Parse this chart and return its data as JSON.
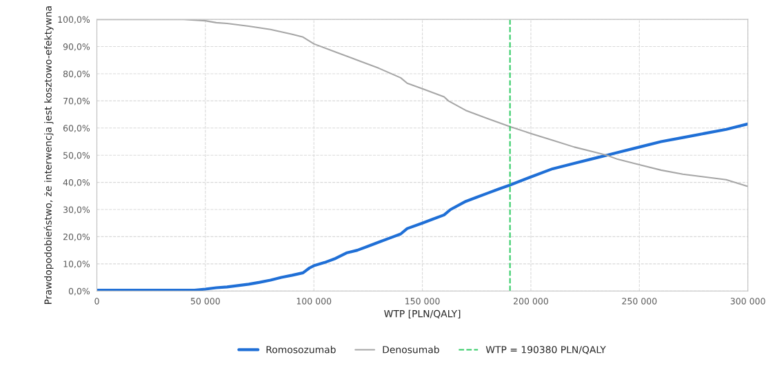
{
  "chart_data": {
    "type": "line",
    "xlabel": "WTP [PLN/QALY]",
    "ylabel": "Prawdopodobieństwo, że interwencja jest kosztowo-efektywna",
    "xlim": [
      0,
      300000
    ],
    "xticks": [
      0,
      {
        "value": 50000,
        "label": "50 000"
      },
      {
        "value": 100000,
        "label": "100 000"
      },
      {
        "value": 150000,
        "label": "150 000"
      },
      {
        "value": 200000,
        "label": "200 000"
      },
      {
        "value": 250000,
        "label": "250 000"
      },
      {
        "value": 300000,
        "label": "300 000"
      }
    ],
    "ylim": [
      0,
      100
    ],
    "yticks": [
      {
        "value": 0,
        "label": "0,0%"
      },
      {
        "value": 10,
        "label": "10,0%"
      },
      {
        "value": 20,
        "label": "20,0%"
      },
      {
        "value": 30,
        "label": "30,0%"
      },
      {
        "value": 40,
        "label": "40,0%"
      },
      {
        "value": 50,
        "label": "50,0%"
      },
      {
        "value": 60,
        "label": "60,0%"
      },
      {
        "value": 70,
        "label": "70,0%"
      },
      {
        "value": 80,
        "label": "80,0%"
      },
      {
        "value": 90,
        "label": "90,0%"
      },
      {
        "value": 100,
        "label": "100,0%"
      }
    ],
    "grid": true,
    "legend": "bottom",
    "series": [
      {
        "name": "Romosozumab",
        "color": "#1f6fd6",
        "x": [
          0,
          45000,
          50000,
          55000,
          60000,
          65000,
          70000,
          75000,
          80000,
          85000,
          90000,
          95000,
          98000,
          100000,
          105000,
          110000,
          115000,
          120000,
          125000,
          130000,
          135000,
          140000,
          143000,
          150000,
          155000,
          160000,
          163000,
          170000,
          175000,
          180000,
          185000,
          190380,
          200000,
          210000,
          220000,
          230000,
          235000,
          240000,
          250000,
          260000,
          270000,
          280000,
          290000,
          300000
        ],
        "values": [
          0.3,
          0.3,
          0.7,
          1.2,
          1.5,
          2.0,
          2.5,
          3.2,
          4.0,
          5.0,
          5.8,
          6.7,
          8.5,
          9.3,
          10.5,
          12.0,
          14.0,
          15.0,
          16.5,
          18.0,
          19.5,
          21.0,
          23.0,
          25.0,
          26.5,
          28.0,
          30.0,
          33.0,
          34.5,
          36.0,
          37.5,
          39.0,
          42.0,
          45.0,
          47.0,
          49.0,
          50.0,
          51.0,
          53.0,
          55.0,
          56.5,
          58.0,
          59.5,
          61.5
        ]
      },
      {
        "name": "Denosumab",
        "color": "#a6a6a6",
        "x": [
          0,
          40000,
          50000,
          55000,
          60000,
          70000,
          80000,
          90000,
          95000,
          100000,
          110000,
          120000,
          130000,
          140000,
          143000,
          150000,
          160000,
          162000,
          170000,
          180000,
          190380,
          200000,
          210000,
          220000,
          230000,
          235000,
          240000,
          250000,
          260000,
          270000,
          280000,
          290000,
          300000
        ],
        "values": [
          100,
          100,
          99.5,
          98.8,
          98.5,
          97.5,
          96.3,
          94.5,
          93.5,
          91.0,
          88.0,
          85.0,
          82.0,
          78.5,
          76.5,
          74.5,
          71.5,
          70.0,
          66.5,
          63.5,
          60.5,
          58.0,
          55.5,
          53.0,
          51.0,
          50.0,
          48.5,
          46.5,
          44.5,
          43.0,
          42.0,
          41.0,
          38.5
        ]
      }
    ],
    "ref_lines": [
      {
        "axis": "x",
        "value": 190380,
        "label": "WTP = 190380 PLN/QALY",
        "color": "#33cc66",
        "line_style": "dashed"
      }
    ]
  }
}
